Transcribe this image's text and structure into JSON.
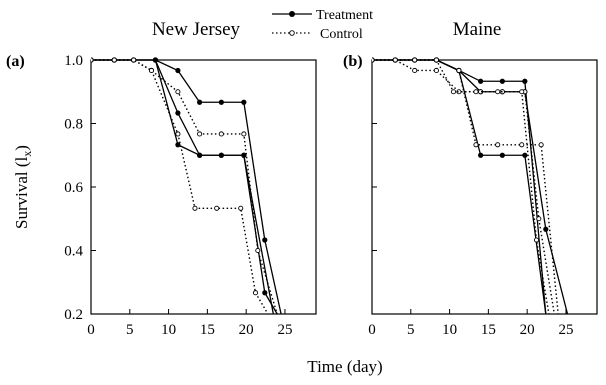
{
  "legend": {
    "treatment": "Treatment",
    "control": "Control"
  },
  "ylabel_main": "Survival (l",
  "ylabel_sub": "x",
  "ylabel_close": ")",
  "xlabel": "Time (day)",
  "chart_data": [
    {
      "type": "line",
      "panel_label": "(a)",
      "title": "New Jersey",
      "xlim": [
        0,
        29
      ],
      "ylim": [
        0.2,
        1.0
      ],
      "xticks": [
        0,
        5,
        10,
        15,
        20,
        25
      ],
      "yticks": [
        0.2,
        0.4,
        0.6,
        0.8,
        1.0
      ],
      "ytick_labels": [
        "0.2",
        "0.4",
        "0.6",
        "0.8",
        "1.0"
      ],
      "series": [
        {
          "name": "Treatment",
          "group": "treatment",
          "points": [
            [
              0,
              1.0
            ],
            [
              3,
              1.0
            ],
            [
              5.5,
              1.0
            ],
            [
              8.3,
              1.0
            ],
            [
              11.2,
              0.967
            ],
            [
              14,
              0.867
            ],
            [
              16.8,
              0.867
            ],
            [
              19.7,
              0.867
            ],
            [
              22.4,
              0.433
            ],
            [
              24.5,
              0.2
            ]
          ]
        },
        {
          "name": "Treatment",
          "group": "treatment",
          "points": [
            [
              0,
              1.0
            ],
            [
              3,
              1.0
            ],
            [
              5.5,
              1.0
            ],
            [
              8.3,
              1.0
            ],
            [
              11.2,
              0.733
            ],
            [
              14,
              0.7
            ],
            [
              16.8,
              0.7
            ],
            [
              19.7,
              0.7
            ],
            [
              22.4,
              0.267
            ],
            [
              24,
              0.2
            ]
          ]
        },
        {
          "name": "Treatment",
          "group": "treatment",
          "points": [
            [
              0,
              1.0
            ],
            [
              3,
              1.0
            ],
            [
              5.5,
              1.0
            ],
            [
              8.3,
              1.0
            ],
            [
              11.2,
              0.833
            ],
            [
              14,
              0.7
            ],
            [
              16.8,
              0.7
            ],
            [
              19.7,
              0.7
            ],
            [
              23.5,
              0.2
            ]
          ]
        },
        {
          "name": "Control",
          "group": "control",
          "points": [
            [
              0,
              1.0
            ],
            [
              3,
              1.0
            ],
            [
              5.5,
              1.0
            ],
            [
              7.8,
              0.967
            ],
            [
              11.2,
              0.9
            ],
            [
              14,
              0.767
            ],
            [
              16.8,
              0.767
            ],
            [
              19.7,
              0.767
            ],
            [
              21.5,
              0.4
            ],
            [
              24,
              0.2
            ]
          ]
        },
        {
          "name": "Control",
          "group": "control",
          "points": [
            [
              0,
              1.0
            ],
            [
              3,
              1.0
            ],
            [
              5.5,
              1.0
            ],
            [
              7.8,
              0.967
            ],
            [
              11.2,
              0.767
            ],
            [
              13.4,
              0.533
            ],
            [
              16.2,
              0.533
            ],
            [
              19.3,
              0.533
            ],
            [
              21.2,
              0.267
            ],
            [
              22.8,
              0.2
            ]
          ]
        }
      ]
    },
    {
      "type": "line",
      "panel_label": "(b)",
      "title": "Maine",
      "xlim": [
        0,
        29
      ],
      "ylim": [
        0.2,
        1.0
      ],
      "xticks": [
        0,
        5,
        10,
        15,
        20,
        25
      ],
      "yticks": [
        0.2,
        0.4,
        0.6,
        0.8,
        1.0
      ],
      "series": [
        {
          "name": "Treatment",
          "group": "treatment",
          "points": [
            [
              0,
              1.0
            ],
            [
              3,
              1.0
            ],
            [
              5.5,
              1.0
            ],
            [
              8.3,
              1.0
            ],
            [
              11.2,
              0.967
            ],
            [
              14,
              0.933
            ],
            [
              16.8,
              0.933
            ],
            [
              19.7,
              0.933
            ],
            [
              22.4,
              0.2
            ]
          ]
        },
        {
          "name": "Treatment",
          "group": "treatment",
          "points": [
            [
              0,
              1.0
            ],
            [
              3,
              1.0
            ],
            [
              5.5,
              1.0
            ],
            [
              8.3,
              1.0
            ],
            [
              11.2,
              0.967
            ],
            [
              14,
              0.9
            ],
            [
              16.8,
              0.9
            ],
            [
              19.7,
              0.9
            ],
            [
              22.4,
              0.467
            ],
            [
              25.2,
              0.2
            ]
          ]
        },
        {
          "name": "Treatment",
          "group": "treatment",
          "points": [
            [
              0,
              1.0
            ],
            [
              3,
              1.0
            ],
            [
              5.5,
              1.0
            ],
            [
              8.3,
              1.0
            ],
            [
              11.2,
              0.967
            ],
            [
              14,
              0.7
            ],
            [
              16.8,
              0.7
            ],
            [
              19.7,
              0.7
            ],
            [
              22.4,
              0.2
            ]
          ]
        },
        {
          "name": "Control",
          "group": "control",
          "points": [
            [
              0,
              1.0
            ],
            [
              3,
              1.0
            ],
            [
              5.5,
              0.967
            ],
            [
              8.3,
              0.967
            ],
            [
              11.2,
              0.9
            ],
            [
              14,
              0.9
            ],
            [
              16.8,
              0.9
            ],
            [
              19.7,
              0.9
            ],
            [
              21.5,
              0.5
            ],
            [
              23.5,
              0.2
            ]
          ]
        },
        {
          "name": "Control",
          "group": "control",
          "points": [
            [
              0,
              1.0
            ],
            [
              3,
              1.0
            ],
            [
              5.5,
              1.0
            ],
            [
              8.3,
              1.0
            ],
            [
              11.2,
              0.967
            ],
            [
              13.4,
              0.733
            ],
            [
              16.2,
              0.733
            ],
            [
              19.3,
              0.733
            ],
            [
              21.8,
              0.733
            ],
            [
              24,
              0.2
            ]
          ]
        },
        {
          "name": "Control",
          "group": "control",
          "points": [
            [
              0,
              1.0
            ],
            [
              3,
              1.0
            ],
            [
              5.5,
              1.0
            ],
            [
              8.3,
              1.0
            ],
            [
              10.5,
              0.9
            ],
            [
              13.4,
              0.9
            ],
            [
              16.2,
              0.9
            ],
            [
              19.3,
              0.9
            ],
            [
              21.2,
              0.433
            ],
            [
              22.8,
              0.2
            ]
          ]
        }
      ]
    }
  ]
}
